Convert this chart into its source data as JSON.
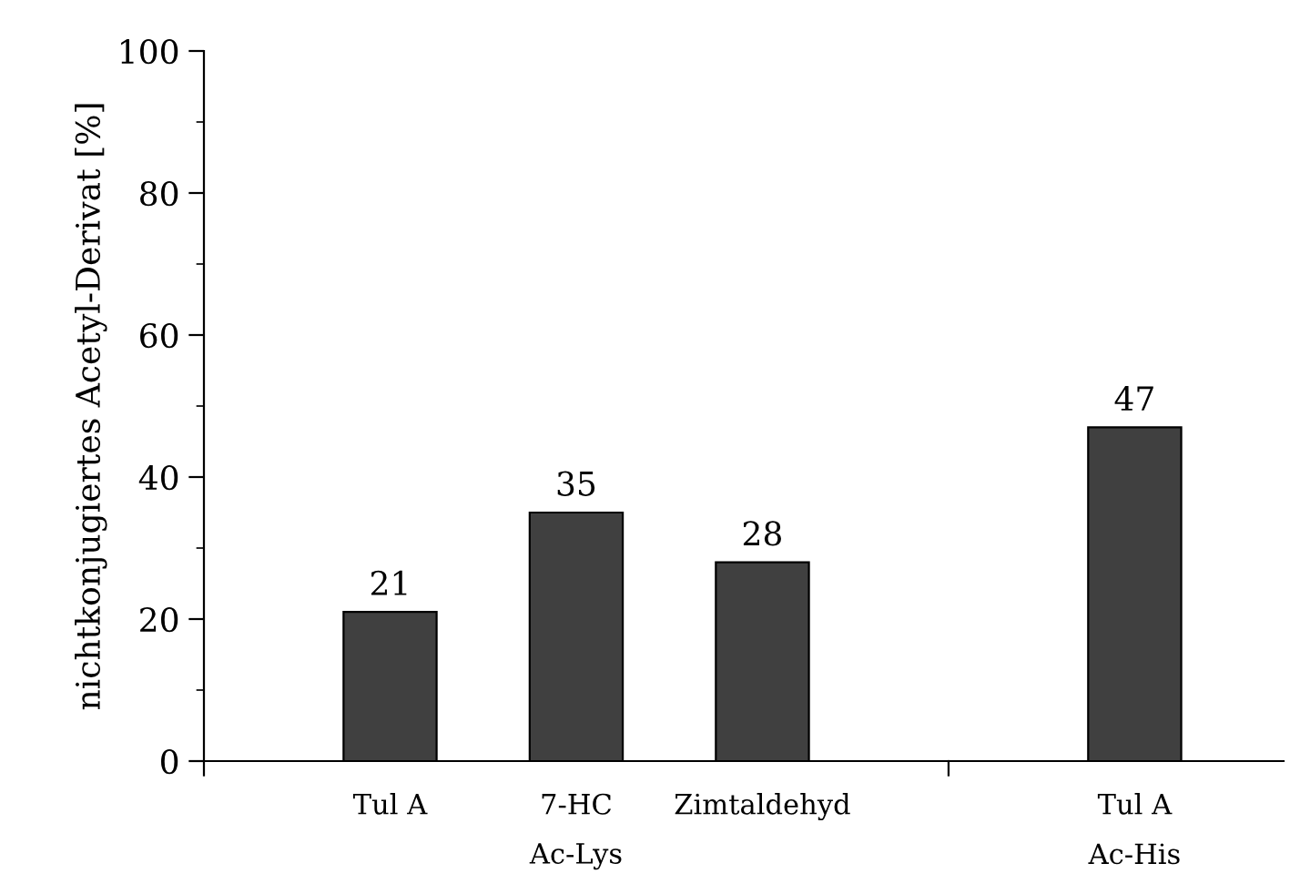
{
  "chart_data": {
    "type": "bar",
    "ylabel": "nichtkonjugiertes Acetyl-Derivat [%]",
    "categories": [
      "Tul A",
      "7-HC",
      "Zimtaldehyd",
      null,
      "Tul A"
    ],
    "values": [
      21,
      35,
      28,
      null,
      47
    ],
    "color": "#404040",
    "ylim": [
      0,
      100
    ],
    "yticks": [
      0,
      20,
      40,
      60,
      80,
      100
    ],
    "data_labels": true,
    "grid": false,
    "legend": false,
    "annotations": [
      "Ac-Lys",
      "Ac-His"
    ]
  }
}
